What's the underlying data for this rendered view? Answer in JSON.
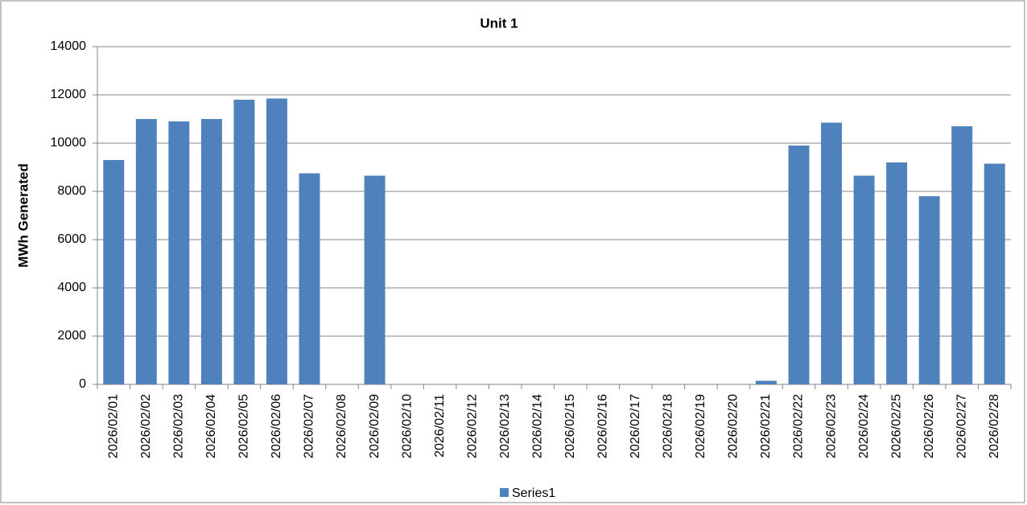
{
  "chart_data": {
    "type": "bar",
    "title": "Unit 1",
    "y_label": "MWh Generated",
    "categories": [
      "2026/02/01",
      "2026/02/02",
      "2026/02/03",
      "2026/02/04",
      "2026/02/05",
      "2026/02/06",
      "2026/02/07",
      "2026/02/08",
      "2026/02/09",
      "2026/02/10",
      "2026/02/11",
      "2026/02/12",
      "2026/02/13",
      "2026/02/14",
      "2026/02/15",
      "2026/02/16",
      "2026/02/17",
      "2026/02/18",
      "2026/02/19",
      "2026/02/20",
      "2026/02/21",
      "2026/02/22",
      "2026/02/23",
      "2026/02/24",
      "2026/02/25",
      "2026/02/26",
      "2026/02/27",
      "2026/02/28"
    ],
    "series": [
      {
        "name": "Series1",
        "color": "#4f81bd",
        "values": [
          9300,
          11000,
          10900,
          11000,
          11800,
          11850,
          8750,
          0,
          8650,
          0,
          0,
          0,
          0,
          0,
          0,
          0,
          0,
          0,
          0,
          0,
          150,
          9900,
          10850,
          8650,
          9200,
          7800,
          10700,
          9150
        ]
      }
    ],
    "ylim": [
      0,
      14000
    ],
    "yticks": [
      0,
      2000,
      4000,
      6000,
      8000,
      10000,
      12000,
      14000
    ],
    "grid": true,
    "legend": "bottom"
  }
}
